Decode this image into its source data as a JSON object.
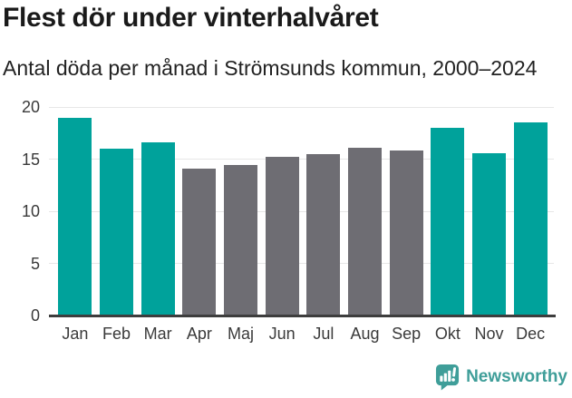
{
  "header": {
    "title": "Flest dör under vinterhalvåret",
    "subtitle": "Antal döda per månad i Strömsunds kommun, 2000–2024"
  },
  "chart_data": {
    "type": "bar",
    "title": "Flest dör under vinterhalvåret",
    "subtitle": "Antal döda per månad i Strömsunds kommun, 2000–2024",
    "categories": [
      "Jan",
      "Feb",
      "Mar",
      "Apr",
      "Maj",
      "Jun",
      "Jul",
      "Aug",
      "Sep",
      "Okt",
      "Nov",
      "Dec"
    ],
    "values": [
      19.0,
      16.0,
      16.6,
      14.1,
      14.4,
      15.2,
      15.5,
      16.1,
      15.8,
      18.0,
      15.6,
      18.5
    ],
    "bar_color_keys": [
      "teal",
      "teal",
      "teal",
      "gray",
      "gray",
      "gray",
      "gray",
      "gray",
      "gray",
      "teal",
      "teal",
      "teal"
    ],
    "palette": {
      "teal": "#00a29b",
      "gray": "#6e6d73"
    },
    "xlabel": "",
    "ylabel": "",
    "ylim": [
      0,
      20
    ],
    "yticks": [
      0,
      5,
      10,
      15,
      20
    ],
    "grid": true,
    "legend": "none"
  },
  "footer": {
    "brand": "Newsworthy",
    "brand_color": "#3f9e99",
    "logo_icon": "newsworthy-bar-chart-bubble-icon"
  }
}
